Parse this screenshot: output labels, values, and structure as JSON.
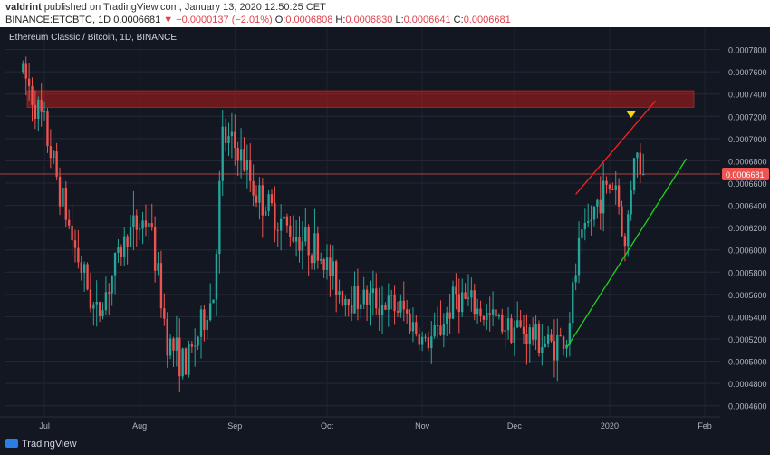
{
  "header": {
    "publisher": "valdrint",
    "published_text": "published on TradingView.com, January 13, 2020 12:50:25 CET",
    "symbol": "BINANCE:ETCBTC, 1D",
    "last": "0.0006681",
    "change": "−0.0000137 (−2.01%)",
    "ohlc": [
      {
        "k": "O:",
        "v": "0.0006808"
      },
      {
        "k": "H:",
        "v": "0.0006830"
      },
      {
        "k": "L:",
        "v": "0.0006641"
      },
      {
        "k": "C:",
        "v": "0.0006681"
      }
    ]
  },
  "footer": {
    "logo_text": "TradingView"
  },
  "chart_data": {
    "type": "candlestick",
    "title": "Ethereum Classic / Bitcoin, 1D, BINANCE",
    "ylim": [
      0.00045,
      0.0008
    ],
    "y_ticks": [
      "0.0007800",
      "0.0007600",
      "0.0007400",
      "0.0007200",
      "0.0007000",
      "0.0006800",
      "0.0006600",
      "0.0006400",
      "0.0006200",
      "0.0006000",
      "0.0005800",
      "0.0005600",
      "0.0005400",
      "0.0005200",
      "0.0005000",
      "0.0004800",
      "0.0004600"
    ],
    "x_ticks": [
      "Jul",
      "Aug",
      "Sep",
      "Oct",
      "Nov",
      "Dec",
      "2020",
      "Feb"
    ],
    "price_label": "0.0006681",
    "resistance_zone": [
      0.000728,
      0.000743
    ],
    "colors": {
      "up": "#26a69a",
      "down": "#ef5350",
      "zone": "#b71c1c",
      "trend_up": "#1ed41e",
      "trend_down": "#ff1f1f",
      "marker": "#f5d60e"
    },
    "trendlines": [
      {
        "name": "support",
        "from": [
          "2019-12-18",
          0.000512
        ],
        "to": [
          "2020-01-26",
          0.000682
        ]
      },
      {
        "name": "resistance",
        "from": [
          "2019-12-21",
          0.00065
        ],
        "to": [
          "2020-01-16",
          0.000734
        ]
      }
    ],
    "key_points": [
      [
        "2019-06-24",
        0.00076
      ],
      [
        "2019-07-01",
        0.00071
      ],
      [
        "2019-07-10",
        0.00061
      ],
      [
        "2019-07-18",
        0.00054
      ],
      [
        "2019-07-28",
        0.000615
      ],
      [
        "2019-08-04",
        0.000628
      ],
      [
        "2019-08-10",
        0.00052
      ],
      [
        "2019-08-16",
        0.000495
      ],
      [
        "2019-08-25",
        0.00056
      ],
      [
        "2019-08-28",
        0.0007
      ],
      [
        "2019-09-02",
        0.00069
      ],
      [
        "2019-09-08",
        0.00065
      ],
      [
        "2019-09-18",
        0.00062
      ],
      [
        "2019-09-28",
        0.0006
      ],
      [
        "2019-10-06",
        0.00056
      ],
      [
        "2019-10-16",
        0.000555
      ],
      [
        "2019-10-26",
        0.000545
      ],
      [
        "2019-11-02",
        0.000515
      ],
      [
        "2019-11-06",
        0.000525
      ],
      [
        "2019-11-12",
        0.00056
      ],
      [
        "2019-11-22",
        0.00054
      ],
      [
        "2019-12-02",
        0.00053
      ],
      [
        "2019-12-12",
        0.000515
      ],
      [
        "2019-12-18",
        0.00052
      ],
      [
        "2019-12-22",
        0.0006
      ],
      [
        "2019-12-29",
        0.00065
      ],
      [
        "2020-01-03",
        0.00066
      ],
      [
        "2020-01-06",
        0.0006
      ],
      [
        "2020-01-09",
        0.00069
      ],
      [
        "2020-01-12",
        0.000668
      ]
    ]
  }
}
